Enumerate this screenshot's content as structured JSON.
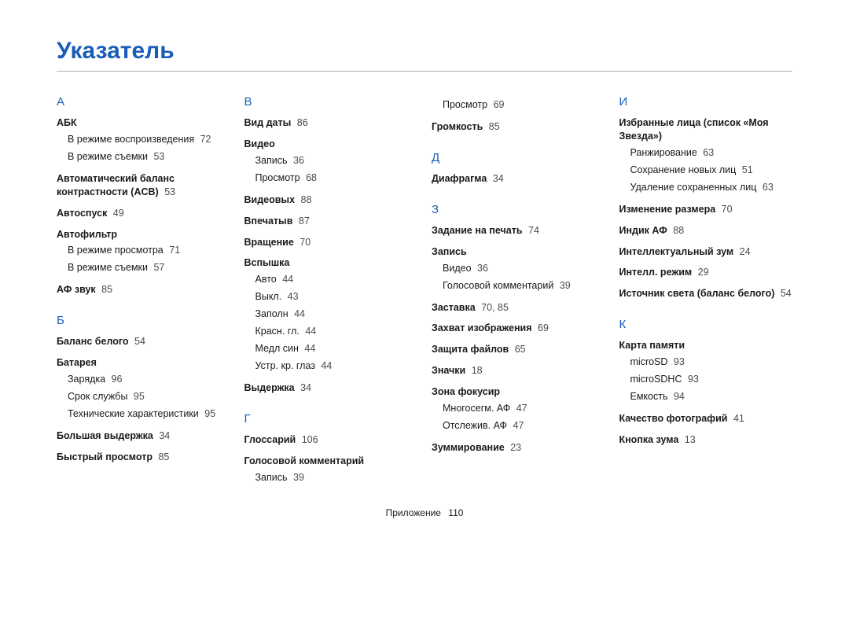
{
  "title": "Указатель",
  "title_color": "#1a5db8",
  "letter_color": "#1a5db8",
  "rule_color": "#b0b0b0",
  "text_color": "#1a1a1a",
  "page_ref_color": "#4a4a4a",
  "footer_label": "Приложение",
  "footer_page": "110",
  "columns": [
    [
      {
        "type": "letter",
        "label": "А"
      },
      {
        "type": "entry",
        "label": "АБК",
        "page": ""
      },
      {
        "type": "sub",
        "label": "В режиме воспроизведения",
        "page": "72"
      },
      {
        "type": "sub",
        "label": "В режиме съемки",
        "page": "53"
      },
      {
        "type": "entry",
        "label": "Автоматический баланс контрастности (ACB)",
        "page": "53"
      },
      {
        "type": "entry",
        "label": "Автоспуск",
        "page": "49"
      },
      {
        "type": "entry",
        "label": "Автофильтр",
        "page": ""
      },
      {
        "type": "sub",
        "label": "В режиме просмотра",
        "page": "71"
      },
      {
        "type": "sub",
        "label": "В режиме съемки",
        "page": "57"
      },
      {
        "type": "entry",
        "label": "АФ звук",
        "page": "85"
      },
      {
        "type": "letter",
        "label": "Б"
      },
      {
        "type": "entry",
        "label": "Баланс белого",
        "page": "54"
      },
      {
        "type": "entry",
        "label": "Батарея",
        "page": ""
      },
      {
        "type": "sub",
        "label": "Зарядка",
        "page": "96"
      },
      {
        "type": "sub",
        "label": "Срок службы",
        "page": "95"
      },
      {
        "type": "sub",
        "label": "Технические характеристики",
        "page": "95"
      },
      {
        "type": "entry",
        "label": "Большая выдержка",
        "page": "34"
      },
      {
        "type": "entry",
        "label": "Быстрый просмотр",
        "page": "85"
      }
    ],
    [
      {
        "type": "letter",
        "label": "В"
      },
      {
        "type": "entry",
        "label": "Вид даты",
        "page": "86"
      },
      {
        "type": "entry",
        "label": "Видео",
        "page": ""
      },
      {
        "type": "sub",
        "label": "Запись",
        "page": "36"
      },
      {
        "type": "sub",
        "label": "Просмотр",
        "page": "68"
      },
      {
        "type": "entry",
        "label": "Видеовых",
        "page": "88"
      },
      {
        "type": "entry",
        "label": "Впечатыв",
        "page": "87"
      },
      {
        "type": "entry",
        "label": "Вращение",
        "page": "70"
      },
      {
        "type": "entry",
        "label": "Вспышка",
        "page": ""
      },
      {
        "type": "sub",
        "label": "Авто",
        "page": "44"
      },
      {
        "type": "sub",
        "label": "Выкл.",
        "page": "43"
      },
      {
        "type": "sub",
        "label": "Заполн",
        "page": "44"
      },
      {
        "type": "sub",
        "label": "Красн. гл.",
        "page": "44"
      },
      {
        "type": "sub",
        "label": "Медл син",
        "page": "44"
      },
      {
        "type": "sub",
        "label": "Устр. кр. глаз",
        "page": "44"
      },
      {
        "type": "entry",
        "label": "Выдержка",
        "page": "34"
      },
      {
        "type": "letter",
        "label": "Г"
      },
      {
        "type": "entry",
        "label": "Глоссарий",
        "page": "106"
      },
      {
        "type": "entry",
        "label": "Голосовой комментарий",
        "page": ""
      },
      {
        "type": "sub",
        "label": "Запись",
        "page": "39"
      }
    ],
    [
      {
        "type": "sub",
        "label": "Просмотр",
        "page": "69"
      },
      {
        "type": "entry",
        "label": "Громкость",
        "page": "85"
      },
      {
        "type": "letter",
        "label": "Д"
      },
      {
        "type": "entry",
        "label": "Диафрагма",
        "page": "34"
      },
      {
        "type": "letter",
        "label": "З"
      },
      {
        "type": "entry",
        "label": "Задание на печать",
        "page": "74"
      },
      {
        "type": "entry",
        "label": "Запись",
        "page": ""
      },
      {
        "type": "sub",
        "label": "Видео",
        "page": "36"
      },
      {
        "type": "sub",
        "label": "Голосовой комментарий",
        "page": "39"
      },
      {
        "type": "entry",
        "label": "Заставка",
        "page": "70, 85"
      },
      {
        "type": "entry",
        "label": "Захват изображения",
        "page": "69"
      },
      {
        "type": "entry",
        "label": "Защита файлов",
        "page": "65"
      },
      {
        "type": "entry",
        "label": "Значки",
        "page": "18"
      },
      {
        "type": "entry",
        "label": "Зона фокусир",
        "page": ""
      },
      {
        "type": "sub",
        "label": "Многосегм. АФ",
        "page": "47"
      },
      {
        "type": "sub",
        "label": "Отслежив. АФ",
        "page": "47"
      },
      {
        "type": "entry",
        "label": "Зуммирование",
        "page": "23"
      }
    ],
    [
      {
        "type": "letter",
        "label": "И"
      },
      {
        "type": "entry",
        "label": "Избранные лица (список «Моя Звезда»)",
        "page": ""
      },
      {
        "type": "sub",
        "label": "Ранжирование",
        "page": "63"
      },
      {
        "type": "sub",
        "label": "Сохранение новых лиц",
        "page": "51"
      },
      {
        "type": "sub",
        "label": "Удаление сохраненных лиц",
        "page": "63"
      },
      {
        "type": "entry",
        "label": "Изменение размера",
        "page": "70"
      },
      {
        "type": "entry",
        "label": "Индик АФ",
        "page": "88"
      },
      {
        "type": "entry",
        "label": "Интеллектуальный зум",
        "page": "24"
      },
      {
        "type": "entry",
        "label": "Интелл. режим",
        "page": "29"
      },
      {
        "type": "entry",
        "label": "Источник света (баланс белого)",
        "page": "54"
      },
      {
        "type": "letter",
        "label": "К"
      },
      {
        "type": "entry",
        "label": "Карта памяти",
        "page": ""
      },
      {
        "type": "sub",
        "label": "microSD",
        "page": "93"
      },
      {
        "type": "sub",
        "label": "microSDHC",
        "page": "93"
      },
      {
        "type": "sub",
        "label": "Емкость",
        "page": "94"
      },
      {
        "type": "entry",
        "label": "Качество фотографий",
        "page": "41"
      },
      {
        "type": "entry",
        "label": "Кнопка зума",
        "page": "13"
      }
    ]
  ]
}
